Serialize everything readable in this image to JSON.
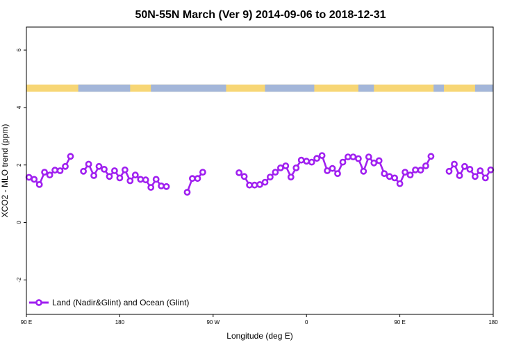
{
  "chart_data": {
    "type": "line",
    "title": "50N-55N March (Ver 9)   2014-09-06 to 2018-12-31",
    "xlabel": "Longitude (deg E)",
    "ylabel": "XCO2 - MLO trend (ppm)",
    "xlim": [
      -90,
      270
    ],
    "ylim": [
      -3.2,
      6.8
    ],
    "xticks": [
      {
        "value": -90,
        "label": "90 E"
      },
      {
        "value": -18,
        "label": "180"
      },
      {
        "value": 54,
        "label": "90 W"
      },
      {
        "value": 126,
        "label": "0"
      },
      {
        "value": 198,
        "label": "90 E"
      },
      {
        "value": 270,
        "label": "180"
      }
    ],
    "yticks": [
      {
        "value": -2,
        "label": "-2"
      },
      {
        "value": 0,
        "label": "0"
      },
      {
        "value": 2,
        "label": "2"
      },
      {
        "value": 4,
        "label": "4"
      },
      {
        "value": 6,
        "label": "6"
      }
    ],
    "grid": false,
    "legend_position": "bottom-left",
    "land_ocean_band": {
      "y_range": [
        4.55,
        4.8
      ],
      "land_color": "#f7d675",
      "ocean_color": "#a3b6d9",
      "ocean_segments": [
        [
          -50,
          -10
        ],
        [
          6,
          64
        ],
        [
          94,
          132
        ],
        [
          166,
          178
        ],
        [
          224,
          232
        ],
        [
          256,
          270
        ]
      ]
    },
    "series": [
      {
        "name": "Land (Nadir&Glint) and Ocean (Glint)",
        "color": "#a020f0",
        "segments": [
          [
            [
              -88,
              1.57
            ],
            [
              -84,
              1.5
            ],
            [
              -80,
              1.32
            ],
            [
              -76,
              1.75
            ],
            [
              -72,
              1.65
            ],
            [
              -68,
              1.82
            ],
            [
              -64,
              1.8
            ],
            [
              -60,
              1.95
            ],
            [
              -56,
              2.3
            ]
          ],
          [
            [
              -46,
              1.78
            ],
            [
              -42,
              2.03
            ],
            [
              -38,
              1.63
            ],
            [
              -34,
              1.95
            ],
            [
              -30,
              1.85
            ],
            [
              -26,
              1.6
            ],
            [
              -22,
              1.8
            ],
            [
              -18,
              1.55
            ],
            [
              -14,
              1.83
            ],
            [
              -10,
              1.45
            ],
            [
              -6,
              1.65
            ],
            [
              -2,
              1.5
            ],
            [
              2,
              1.48
            ],
            [
              6,
              1.22
            ],
            [
              10,
              1.5
            ],
            [
              14,
              1.27
            ],
            [
              18,
              1.25
            ]
          ],
          [
            [
              34,
              1.05
            ],
            [
              38,
              1.53
            ],
            [
              42,
              1.53
            ],
            [
              46,
              1.75
            ]
          ],
          [
            [
              74,
              1.73
            ],
            [
              78,
              1.6
            ],
            [
              82,
              1.3
            ],
            [
              86,
              1.3
            ],
            [
              90,
              1.32
            ],
            [
              94,
              1.4
            ],
            [
              98,
              1.58
            ],
            [
              102,
              1.75
            ],
            [
              106,
              1.9
            ],
            [
              110,
              1.97
            ],
            [
              114,
              1.58
            ],
            [
              118,
              1.9
            ],
            [
              122,
              2.17
            ],
            [
              126,
              2.13
            ],
            [
              130,
              2.1
            ],
            [
              134,
              2.23
            ],
            [
              138,
              2.33
            ],
            [
              142,
              1.8
            ],
            [
              146,
              1.88
            ],
            [
              150,
              1.7
            ],
            [
              154,
              2.1
            ],
            [
              158,
              2.28
            ],
            [
              162,
              2.28
            ],
            [
              166,
              2.22
            ],
            [
              170,
              1.78
            ],
            [
              174,
              2.28
            ],
            [
              178,
              2.07
            ],
            [
              182,
              2.15
            ],
            [
              186,
              1.7
            ],
            [
              190,
              1.6
            ],
            [
              194,
              1.55
            ],
            [
              198,
              1.35
            ],
            [
              202,
              1.75
            ],
            [
              206,
              1.65
            ],
            [
              210,
              1.83
            ],
            [
              214,
              1.82
            ],
            [
              218,
              1.97
            ],
            [
              222,
              2.3
            ]
          ],
          [
            [
              236,
              1.78
            ],
            [
              240,
              2.03
            ],
            [
              244,
              1.63
            ],
            [
              248,
              1.95
            ],
            [
              252,
              1.85
            ],
            [
              256,
              1.6
            ],
            [
              260,
              1.8
            ],
            [
              264,
              1.55
            ],
            [
              268,
              1.83
            ]
          ]
        ]
      }
    ]
  }
}
